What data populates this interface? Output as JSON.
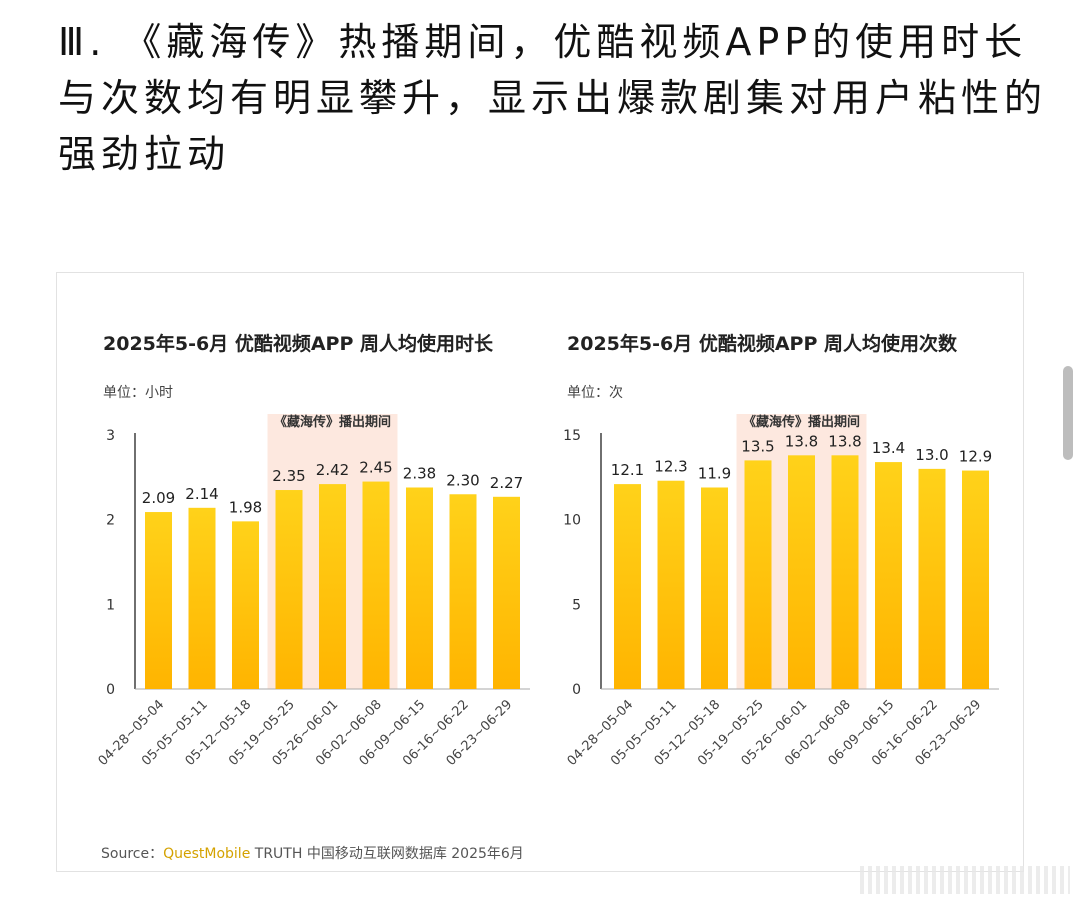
{
  "heading": "Ⅲ. 《藏海传》热播期间，优酷视频APP的使用时长与次数均有明显攀升，显示出爆款剧集对用户粘性的强劲拉动",
  "source": {
    "prefix": "Source：",
    "brand": "QuestMobile",
    "suffix": " TRUTH 中国移动互联网数据库 2025年6月"
  },
  "colors": {
    "bar_top": "#ffd21a",
    "bar_bottom": "#ffb400",
    "highlight": "#fde8df",
    "axis": "#222222"
  },
  "chart_data": [
    {
      "type": "bar",
      "title": "2025年5-6月 优酷视频APP 周人均使用时长",
      "unit": "单位：小时",
      "annotation": "《藏海传》播出期间",
      "categories": [
        "04-28~05-04",
        "05-05~05-11",
        "05-12~05-18",
        "05-19~05-25",
        "05-26~06-01",
        "06-02~06-08",
        "06-09~06-15",
        "06-16~06-22",
        "06-23~06-29"
      ],
      "values": [
        2.09,
        2.14,
        1.98,
        2.35,
        2.42,
        2.45,
        2.38,
        2.3,
        2.27
      ],
      "value_labels": [
        "2.09",
        "2.14",
        "1.98",
        "2.35",
        "2.42",
        "2.45",
        "2.38",
        "2.30",
        "2.27"
      ],
      "ylim": [
        0,
        3
      ],
      "yticks": [
        "0",
        "1",
        "2",
        "3"
      ],
      "highlight_categories": [
        3,
        5
      ]
    },
    {
      "type": "bar",
      "title": "2025年5-6月 优酷视频APP 周人均使用次数",
      "unit": "单位：次",
      "annotation": "《藏海传》播出期间",
      "categories": [
        "04-28~05-04",
        "05-05~05-11",
        "05-12~05-18",
        "05-19~05-25",
        "05-26~06-01",
        "06-02~06-08",
        "06-09~06-15",
        "06-16~06-22",
        "06-23~06-29"
      ],
      "values": [
        12.1,
        12.3,
        11.9,
        13.5,
        13.8,
        13.8,
        13.4,
        13.0,
        12.9
      ],
      "value_labels": [
        "12.1",
        "12.3",
        "11.9",
        "13.5",
        "13.8",
        "13.8",
        "13.4",
        "13.0",
        "12.9"
      ],
      "ylim": [
        0,
        15
      ],
      "yticks": [
        "0",
        "5",
        "10",
        "15"
      ],
      "highlight_categories": [
        3,
        5
      ]
    }
  ]
}
